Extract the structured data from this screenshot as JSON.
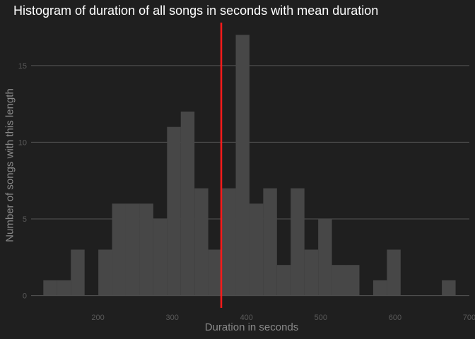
{
  "chart_data": {
    "type": "bar",
    "title": "Histogram of duration of all songs in seconds with mean duration",
    "xlabel": "Duration in seconds",
    "ylabel": "Number of songs with this length",
    "bin_width": 18.5,
    "bins": [
      {
        "start": 126.5,
        "count": 1
      },
      {
        "start": 145.0,
        "count": 1
      },
      {
        "start": 163.5,
        "count": 3
      },
      {
        "start": 182.0,
        "count": 0
      },
      {
        "start": 200.5,
        "count": 3
      },
      {
        "start": 219.0,
        "count": 6
      },
      {
        "start": 237.5,
        "count": 6
      },
      {
        "start": 256.0,
        "count": 6
      },
      {
        "start": 274.5,
        "count": 5
      },
      {
        "start": 293.0,
        "count": 11
      },
      {
        "start": 311.5,
        "count": 12
      },
      {
        "start": 330.0,
        "count": 7
      },
      {
        "start": 348.5,
        "count": 3
      },
      {
        "start": 367.0,
        "count": 7
      },
      {
        "start": 385.5,
        "count": 17
      },
      {
        "start": 404.0,
        "count": 6
      },
      {
        "start": 422.5,
        "count": 7
      },
      {
        "start": 441.0,
        "count": 2
      },
      {
        "start": 459.5,
        "count": 7
      },
      {
        "start": 478.0,
        "count": 3
      },
      {
        "start": 496.5,
        "count": 5
      },
      {
        "start": 515.0,
        "count": 2
      },
      {
        "start": 533.5,
        "count": 2
      },
      {
        "start": 552.0,
        "count": 0
      },
      {
        "start": 570.5,
        "count": 1
      },
      {
        "start": 589.0,
        "count": 3
      },
      {
        "start": 607.5,
        "count": 0
      },
      {
        "start": 626.0,
        "count": 0
      },
      {
        "start": 644.5,
        "count": 0
      },
      {
        "start": 663.0,
        "count": 1
      }
    ],
    "mean_duration": 366,
    "xlim": [
      110,
      700
    ],
    "ylim": [
      -0.8,
      17.8
    ],
    "x_ticks": [
      200,
      300,
      400,
      500,
      600,
      700
    ],
    "y_ticks": [
      0,
      5,
      10,
      15
    ],
    "grid": "horizontal",
    "colors": {
      "background": "#1f1f1f",
      "bar": "#474747",
      "grid": "#555555",
      "mean_line": "#ff1a1a",
      "title": "#ffffff",
      "axis_text": "#595959",
      "axis_title": "#8a8a8a"
    }
  }
}
